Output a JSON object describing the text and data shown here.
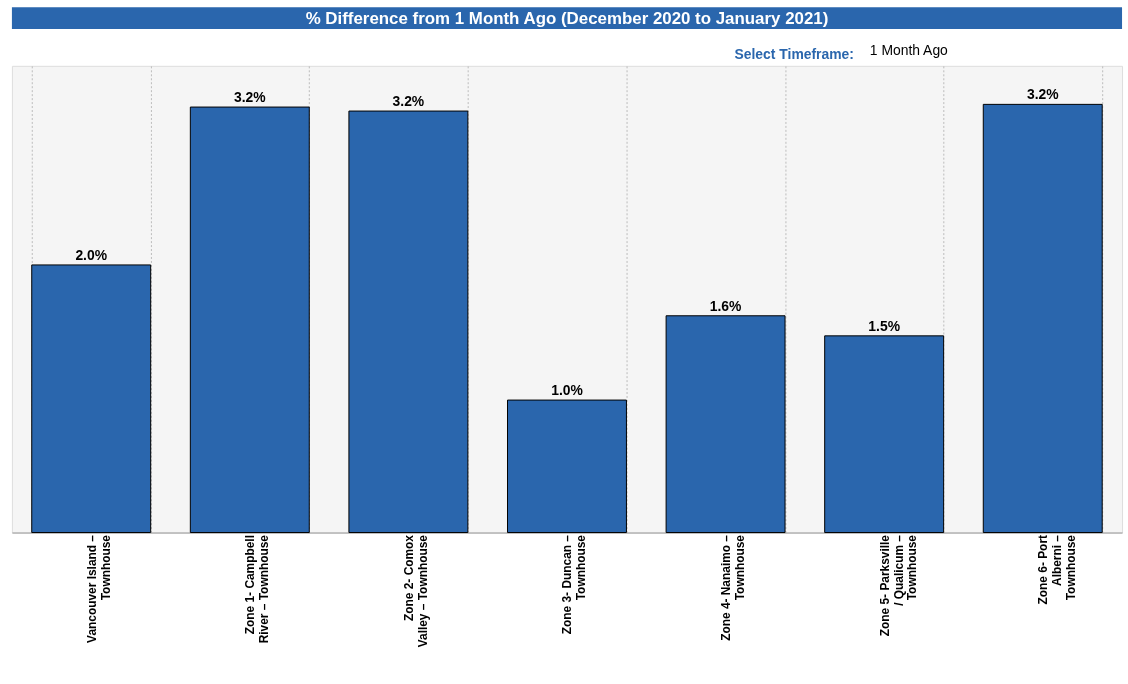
{
  "chart_data": {
    "type": "bar",
    "title": "% Difference from 1 Month Ago (December 2020 to January 2021)",
    "annotations": [
      "Select Timeframe:",
      "1 Month Ago"
    ],
    "categories": [
      "Vancouver Island – Townhouse",
      "Zone 1- Campbell River – Townhouse",
      "Zone 2- Comox Valley – Townhouse",
      "Zone 3- Duncan – Townhouse",
      "Zone 4- Nanaimo – Townhouse",
      "Zone 5- Parksville / Qualicum – Townhouse",
      "Zone 6- Port Alberni – Townhouse"
    ],
    "values": [
      2.0,
      3.18,
      3.15,
      0.99,
      1.62,
      1.47,
      3.2
    ],
    "value_labels": [
      "2.0%",
      "3.2%",
      "3.2%",
      "1.0%",
      "1.6%",
      "1.5%",
      "3.2%"
    ],
    "color": "#2a66ad",
    "grid": "x"
  }
}
